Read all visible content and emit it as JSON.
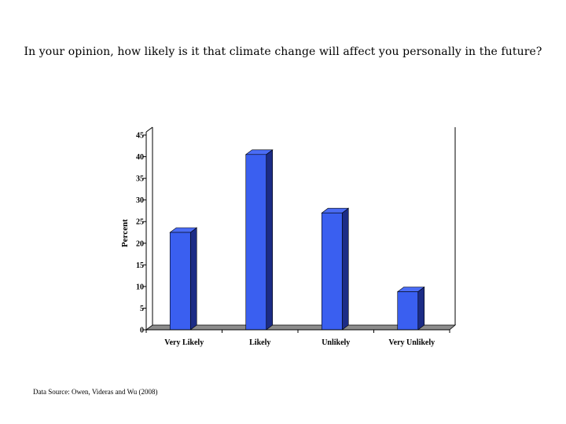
{
  "chart_data": {
    "type": "bar",
    "title": "In your opinion, how likely is it that climate change will affect you personally in the future?",
    "ylabel": "Percent",
    "xlabel": "",
    "categories": [
      "Very Likely",
      "Likely",
      "Unlikely",
      "Very Unlikely"
    ],
    "values": [
      22.5,
      40.5,
      27,
      8.8
    ],
    "ylim": [
      0,
      45
    ],
    "yticks": [
      0,
      5,
      10,
      15,
      20,
      25,
      30,
      35,
      40,
      45
    ],
    "bar_color": "#3a5ff0",
    "bar_side_color": "#1c2c86",
    "bar_top_color": "#4a6cf5",
    "floor_color": "#8c8c8c",
    "grid": false,
    "legend": "none"
  },
  "footer": {
    "source": "Data Source: Owen, Videras and Wu (2008)"
  }
}
